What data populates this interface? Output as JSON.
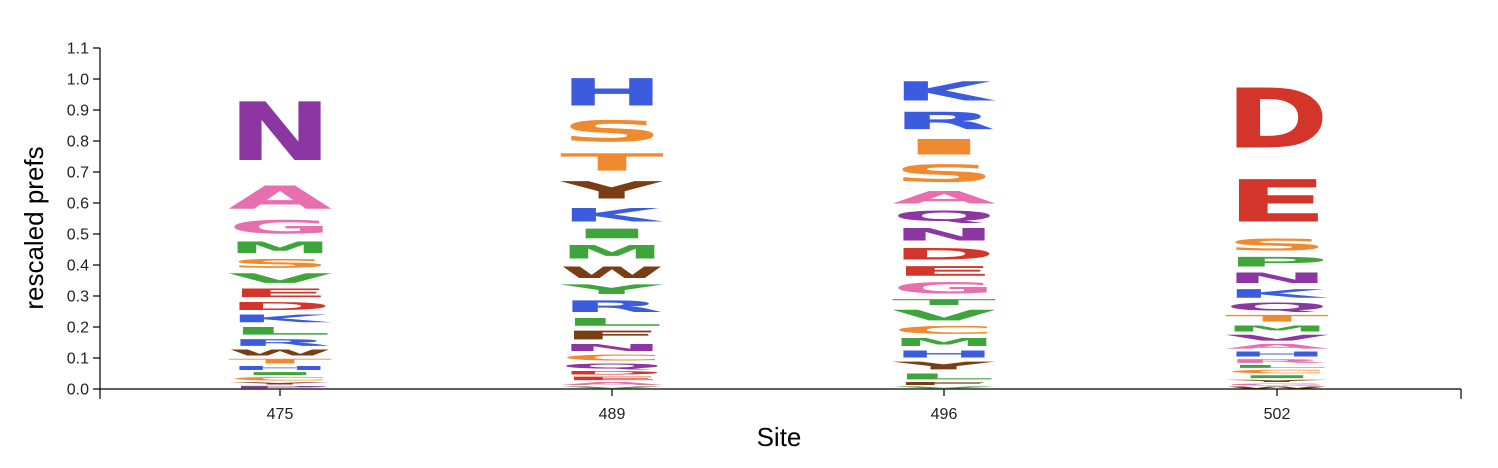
{
  "chart_data": {
    "type": "sequence-logo",
    "xlabel": "Site",
    "ylabel": "rescaled prefs",
    "ylim": [
      0,
      1.1
    ],
    "y_ticks": [
      "0.0",
      "0.1",
      "0.2",
      "0.3",
      "0.4",
      "0.5",
      "0.6",
      "0.7",
      "0.8",
      "0.9",
      "1.0",
      "1.1"
    ],
    "colors": {
      "purple": "#8b36a2",
      "pink": "#e86fae",
      "green": "#3da53a",
      "orange": "#f08a30",
      "red": "#d4352b",
      "blue": "#3c5ce0",
      "brown": "#7b3e14"
    },
    "sites": [
      {
        "site": "475",
        "letters": [
          {
            "aa": "P",
            "value": 0.012,
            "color": "purple"
          },
          {
            "aa": "Y",
            "value": 0.012,
            "color": "brown"
          },
          {
            "aa": "C",
            "value": 0.018,
            "color": "orange"
          },
          {
            "aa": "I",
            "value": 0.015,
            "color": "green"
          },
          {
            "aa": "H",
            "value": 0.02,
            "color": "blue"
          },
          {
            "aa": "T",
            "value": 0.025,
            "color": "orange"
          },
          {
            "aa": "W",
            "value": 0.03,
            "color": "brown"
          },
          {
            "aa": "R",
            "value": 0.035,
            "color": "blue"
          },
          {
            "aa": "L",
            "value": 0.04,
            "color": "green"
          },
          {
            "aa": "K",
            "value": 0.04,
            "color": "blue"
          },
          {
            "aa": "D",
            "value": 0.04,
            "color": "red"
          },
          {
            "aa": "E",
            "value": 0.045,
            "color": "red"
          },
          {
            "aa": "V",
            "value": 0.05,
            "color": "green"
          },
          {
            "aa": "S",
            "value": 0.045,
            "color": "orange"
          },
          {
            "aa": "M",
            "value": 0.06,
            "color": "green"
          },
          {
            "aa": "G",
            "value": 0.07,
            "color": "pink"
          },
          {
            "aa": "A",
            "value": 0.12,
            "color": "pink"
          },
          {
            "aa": "N",
            "value": 0.303,
            "color": "purple"
          }
        ]
      },
      {
        "site": "489",
        "letters": [
          {
            "aa": "V",
            "value": 0.01,
            "color": "green"
          },
          {
            "aa": "A",
            "value": 0.015,
            "color": "pink"
          },
          {
            "aa": "E",
            "value": 0.018,
            "color": "red"
          },
          {
            "aa": "D",
            "value": 0.018,
            "color": "red"
          },
          {
            "aa": "Q",
            "value": 0.025,
            "color": "purple"
          },
          {
            "aa": "C",
            "value": 0.03,
            "color": "orange"
          },
          {
            "aa": "N",
            "value": 0.035,
            "color": "purple"
          },
          {
            "aa": "F",
            "value": 0.045,
            "color": "brown"
          },
          {
            "aa": "L",
            "value": 0.04,
            "color": "green"
          },
          {
            "aa": "R",
            "value": 0.06,
            "color": "blue"
          },
          {
            "aa": "Y",
            "value": 0.05,
            "color": "green"
          },
          {
            "aa": "W",
            "value": 0.06,
            "color": "brown"
          },
          {
            "aa": "M",
            "value": 0.07,
            "color": "green"
          },
          {
            "aa": "I",
            "value": 0.05,
            "color": "green"
          },
          {
            "aa": "K",
            "value": 0.07,
            "color": "blue"
          },
          {
            "aa": "Y",
            "value": 0.09,
            "color": "brown"
          },
          {
            "aa": "T",
            "value": 0.09,
            "color": "orange"
          },
          {
            "aa": "S",
            "value": 0.11,
            "color": "orange"
          },
          {
            "aa": "H",
            "value": 0.14,
            "color": "blue"
          }
        ]
      },
      {
        "site": "496",
        "letters": [
          {
            "aa": "V",
            "value": 0.01,
            "color": "green"
          },
          {
            "aa": "F",
            "value": 0.015,
            "color": "brown"
          },
          {
            "aa": "L",
            "value": 0.03,
            "color": "green"
          },
          {
            "aa": "Y",
            "value": 0.04,
            "color": "brown"
          },
          {
            "aa": "H",
            "value": 0.035,
            "color": "blue"
          },
          {
            "aa": "M",
            "value": 0.04,
            "color": "green"
          },
          {
            "aa": "C",
            "value": 0.04,
            "color": "orange"
          },
          {
            "aa": "V",
            "value": 0.055,
            "color": "green"
          },
          {
            "aa": "T",
            "value": 0.03,
            "color": "green"
          },
          {
            "aa": "G",
            "value": 0.06,
            "color": "pink"
          },
          {
            "aa": "E",
            "value": 0.05,
            "color": "red"
          },
          {
            "aa": "D",
            "value": 0.06,
            "color": "red"
          },
          {
            "aa": "N",
            "value": 0.065,
            "color": "purple"
          },
          {
            "aa": "Q",
            "value": 0.055,
            "color": "purple"
          },
          {
            "aa": "A",
            "value": 0.065,
            "color": "pink"
          },
          {
            "aa": "S",
            "value": 0.09,
            "color": "orange"
          },
          {
            "aa": "I",
            "value": 0.08,
            "color": "orange"
          },
          {
            "aa": "R",
            "value": 0.09,
            "color": "blue"
          },
          {
            "aa": "K",
            "value": 0.1,
            "color": "blue"
          }
        ]
      },
      {
        "site": "502",
        "letters": [
          {
            "aa": "W",
            "value": 0.01,
            "color": "brown"
          },
          {
            "aa": "G",
            "value": 0.01,
            "color": "pink"
          },
          {
            "aa": "Y",
            "value": 0.012,
            "color": "brown"
          },
          {
            "aa": "I",
            "value": 0.015,
            "color": "green"
          },
          {
            "aa": "C",
            "value": 0.018,
            "color": "orange"
          },
          {
            "aa": "L",
            "value": 0.015,
            "color": "green"
          },
          {
            "aa": "R",
            "value": 0.02,
            "color": "pink"
          },
          {
            "aa": "H",
            "value": 0.025,
            "color": "blue"
          },
          {
            "aa": "A",
            "value": 0.025,
            "color": "pink"
          },
          {
            "aa": "V",
            "value": 0.03,
            "color": "purple"
          },
          {
            "aa": "M",
            "value": 0.03,
            "color": "green"
          },
          {
            "aa": "T",
            "value": 0.035,
            "color": "orange"
          },
          {
            "aa": "Q",
            "value": 0.04,
            "color": "purple"
          },
          {
            "aa": "K",
            "value": 0.045,
            "color": "blue"
          },
          {
            "aa": "N",
            "value": 0.055,
            "color": "purple"
          },
          {
            "aa": "P",
            "value": 0.05,
            "color": "green"
          },
          {
            "aa": "S",
            "value": 0.06,
            "color": "orange"
          },
          {
            "aa": "E",
            "value": 0.22,
            "color": "red"
          },
          {
            "aa": "D",
            "value": 0.31,
            "color": "red"
          }
        ]
      }
    ]
  }
}
